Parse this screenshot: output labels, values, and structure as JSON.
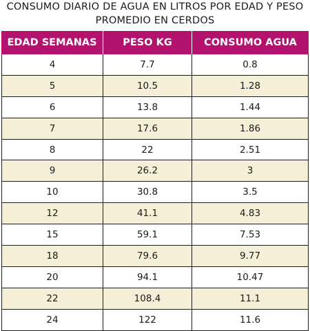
{
  "title_line1": "CONSUMO DIARIO DE AGUA EN LITROS POR EDAD Y PESO",
  "title_line2": "PROMEDIO EN CERDOS",
  "headers": [
    "EDAD SEMANAS",
    "PESO KG",
    "CONSUMO AGUA"
  ],
  "rows": [
    [
      "4",
      "7.7",
      "0.8"
    ],
    [
      "5",
      "10.5",
      "1.28"
    ],
    [
      "6",
      "13.8",
      "1.44"
    ],
    [
      "7",
      "17.6",
      "1.86"
    ],
    [
      "8",
      "22",
      "2.51"
    ],
    [
      "9",
      "26.2",
      "3"
    ],
    [
      "10",
      "30.8",
      "3.5"
    ],
    [
      "12",
      "41.1",
      "4.83"
    ],
    [
      "15",
      "59.1",
      "7.53"
    ],
    [
      "18",
      "79.6",
      "9.77"
    ],
    [
      "20",
      "94.1",
      "10.47"
    ],
    [
      "22",
      "108.4",
      "11.1"
    ],
    [
      "24",
      "122",
      "11.6"
    ]
  ],
  "colors": {
    "header_bg": "#b3126f",
    "shade_bg": "#f5efd7"
  }
}
